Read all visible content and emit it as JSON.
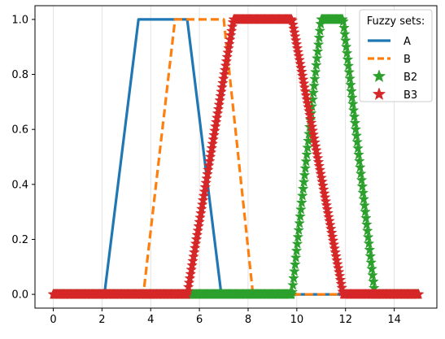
{
  "chart_data": {
    "type": "line",
    "title": "",
    "xlabel": "",
    "ylabel": "",
    "xlim": [
      -0.75,
      15.75
    ],
    "ylim": [
      -0.05,
      1.05
    ],
    "x_ticks": [
      0,
      2,
      4,
      6,
      8,
      10,
      12,
      14
    ],
    "y_ticks": [
      0.0,
      0.2,
      0.4,
      0.6,
      0.8,
      1.0
    ],
    "x_tick_labels": [
      "0",
      "2",
      "4",
      "6",
      "8",
      "10",
      "12",
      "14"
    ],
    "y_tick_labels": [
      "0.0",
      "0.2",
      "0.4",
      "0.6",
      "0.8",
      "1.0"
    ],
    "grid": "vertical",
    "legend": {
      "title": "Fuzzy sets:",
      "position": "top-right",
      "entries": [
        "A",
        "B",
        "B2",
        "B3"
      ]
    },
    "series": [
      {
        "name": "A",
        "style": "solid-line",
        "color": "#1f77b4",
        "x": [
          0,
          2.1,
          3.5,
          5.5,
          6.9,
          15
        ],
        "y": [
          0,
          0,
          1,
          1,
          0,
          0
        ]
      },
      {
        "name": "B",
        "style": "dashed-line",
        "color": "#ff7f0e",
        "x": [
          0,
          3.7,
          5.0,
          7.0,
          8.2,
          15
        ],
        "y": [
          0,
          0,
          1,
          1,
          0,
          0
        ]
      },
      {
        "name": "B2",
        "style": "star-markers",
        "color": "#2ca02c",
        "x": [
          0,
          9.8,
          11.0,
          11.9,
          13.2,
          15
        ],
        "y": [
          0,
          0,
          1,
          1,
          0,
          0
        ]
      },
      {
        "name": "B3",
        "style": "star-markers",
        "color": "#d62728",
        "x": [
          0,
          5.5,
          7.4,
          9.8,
          11.9,
          15
        ],
        "y": [
          0,
          0,
          1,
          1,
          0,
          0
        ]
      }
    ]
  }
}
